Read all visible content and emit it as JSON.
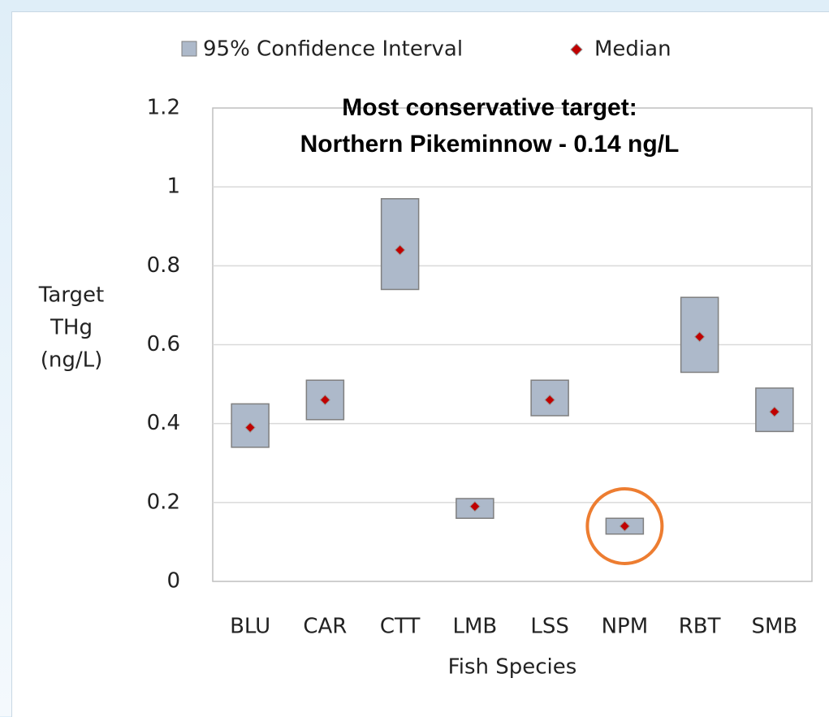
{
  "chart_data": {
    "type": "range",
    "title_lines": [
      "Most conservative target:",
      "Northern Pikeminnow - 0.14 ng/L"
    ],
    "y_label_lines": [
      "Target",
      "THg",
      "(ng/L)"
    ],
    "x_label": "Fish Species",
    "categories": [
      "BLU",
      "CAR",
      "CTT",
      "LMB",
      "LSS",
      "NPM",
      "RBT",
      "SMB"
    ],
    "series": [
      {
        "name": "95% Confidence Interval",
        "color": "#adb9ca",
        "low": [
          0.34,
          0.41,
          0.74,
          0.16,
          0.42,
          0.12,
          0.53,
          0.38
        ],
        "high": [
          0.45,
          0.51,
          0.97,
          0.21,
          0.51,
          0.16,
          0.72,
          0.49
        ]
      },
      {
        "name": "Median",
        "color": "#c00000",
        "values": [
          0.39,
          0.46,
          0.84,
          0.19,
          0.46,
          0.14,
          0.62,
          0.43
        ]
      }
    ],
    "highlight": "NPM",
    "highlight_color": "#ed7d31",
    "ylim": [
      0,
      1.2
    ],
    "yticks": [
      0,
      0.2,
      0.4,
      0.6,
      0.8,
      1,
      1.2
    ],
    "grid": true
  }
}
